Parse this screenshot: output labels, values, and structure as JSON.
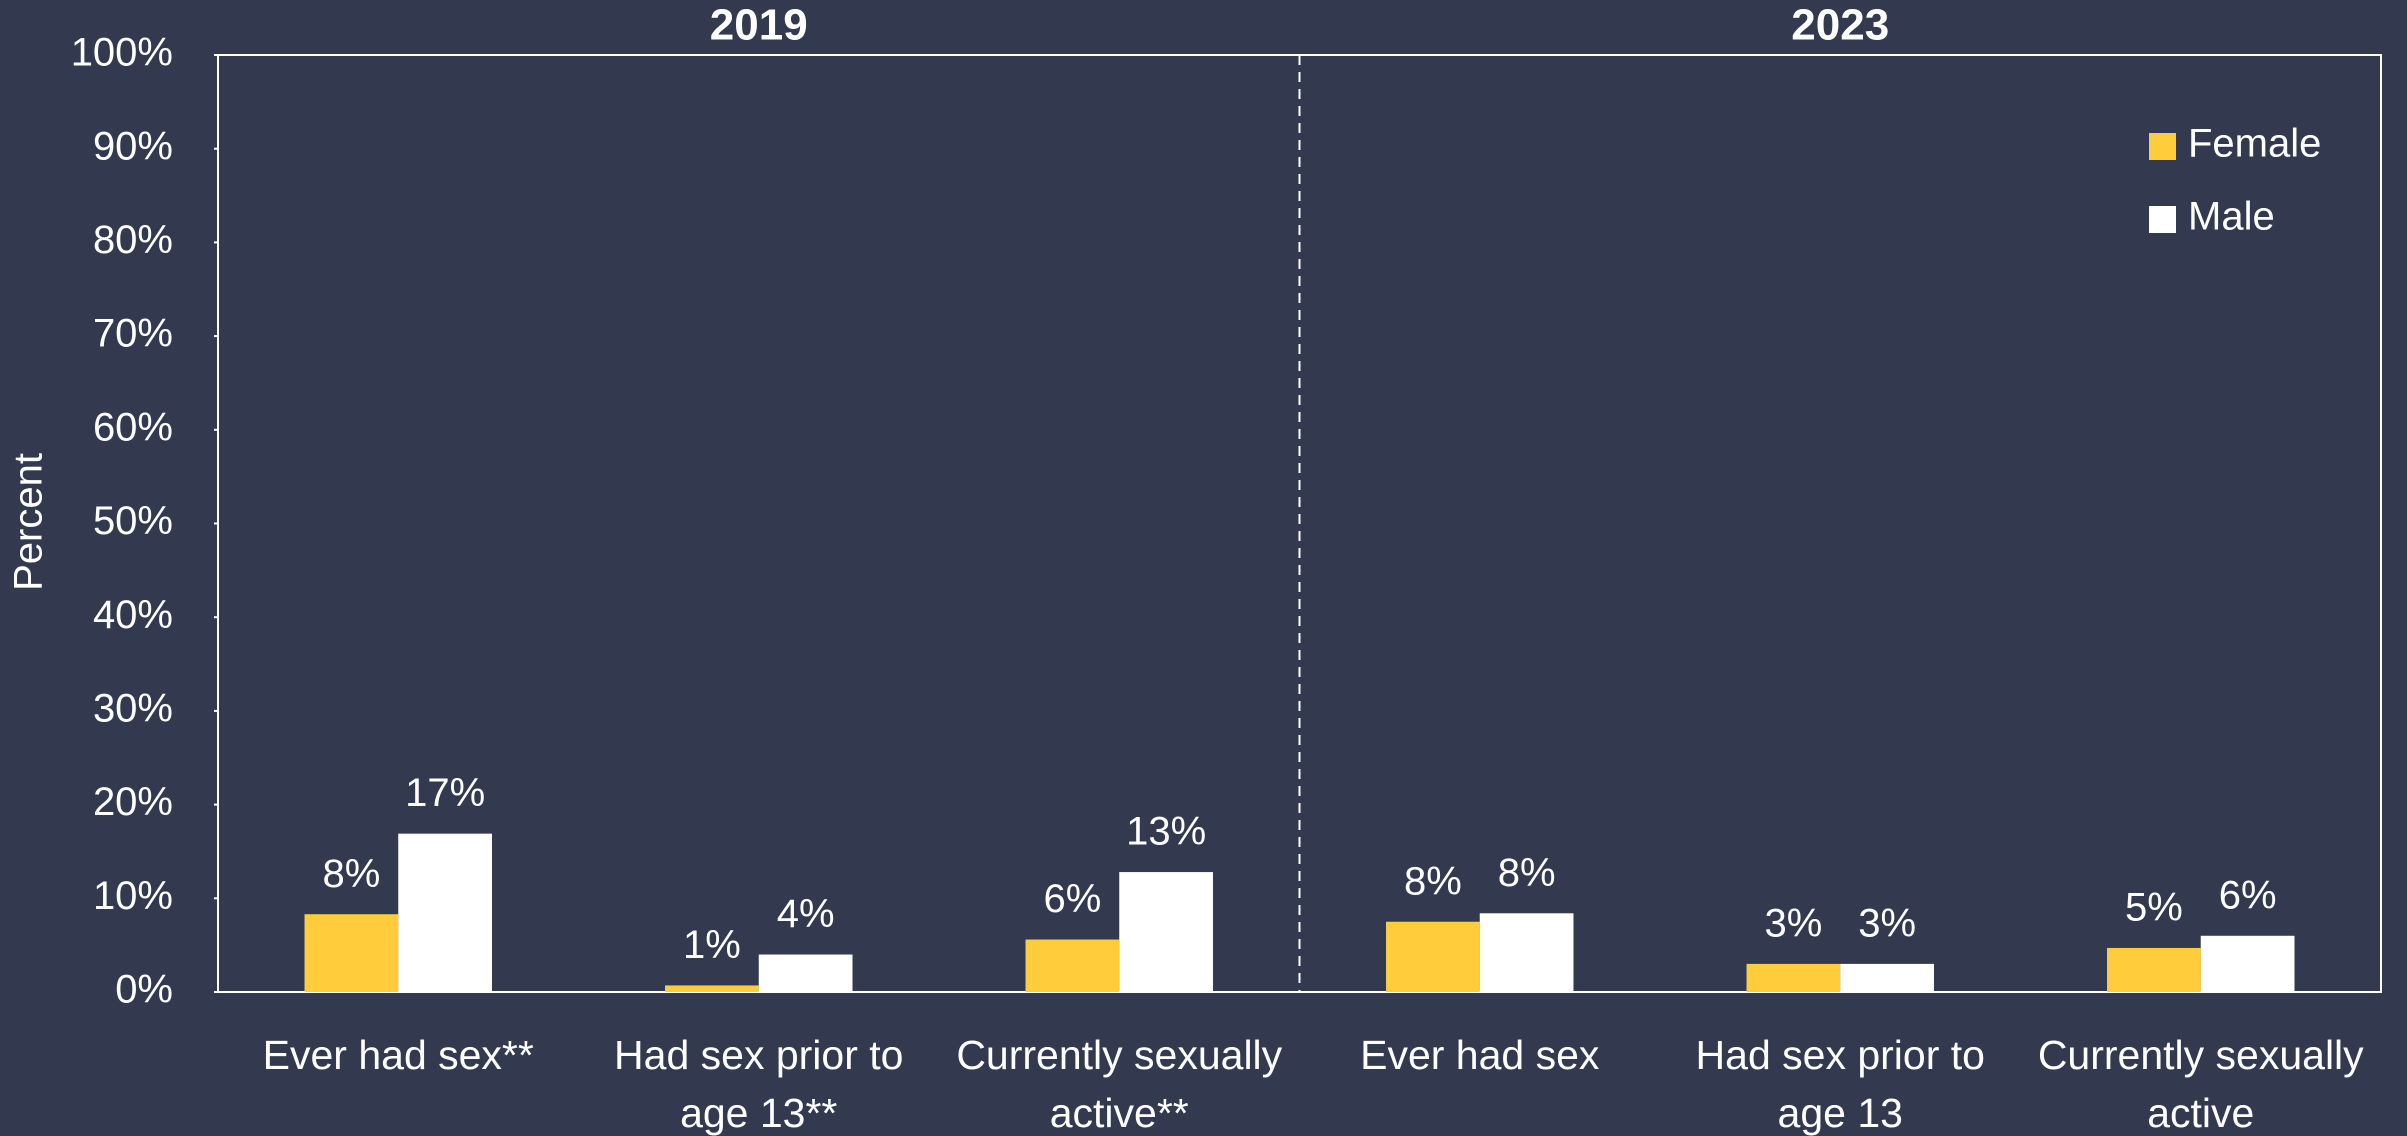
{
  "chart_data": {
    "type": "bar",
    "groups": [
      "2019",
      "2023"
    ],
    "categories": [
      "Ever had sex**",
      "Had sex prior to age 13**",
      "Currently sexually active**",
      "Ever had sex",
      "Had sex prior to age 13",
      "Currently sexually active"
    ],
    "series": [
      {
        "name": "Female",
        "color": "#ffcd3c",
        "values": [
          8.3,
          0.7,
          5.6,
          7.5,
          3.0,
          4.7
        ],
        "value_labels": [
          "8%",
          "1%",
          "6%",
          "8%",
          "3%",
          "5%"
        ]
      },
      {
        "name": "Male",
        "color": "#ffffff",
        "values": [
          16.9,
          4.0,
          12.8,
          8.4,
          3.0,
          6.0
        ],
        "value_labels": [
          "17%",
          "4%",
          "13%",
          "8%",
          "3%",
          "6%"
        ]
      }
    ],
    "y_label": "Percent",
    "ylim": [
      0,
      100
    ],
    "yticks": [
      {
        "value": 0,
        "label": "0%"
      },
      {
        "value": 10,
        "label": "10%"
      },
      {
        "value": 20,
        "label": "20%"
      },
      {
        "value": 30,
        "label": "30%"
      },
      {
        "value": 40,
        "label": "40%"
      },
      {
        "value": 50,
        "label": "50%"
      },
      {
        "value": 60,
        "label": "60%"
      },
      {
        "value": 70,
        "label": "70%"
      },
      {
        "value": 80,
        "label": "80%"
      },
      {
        "value": 90,
        "label": "90%"
      },
      {
        "value": 100,
        "label": "100%"
      }
    ],
    "legend": "top-right"
  }
}
